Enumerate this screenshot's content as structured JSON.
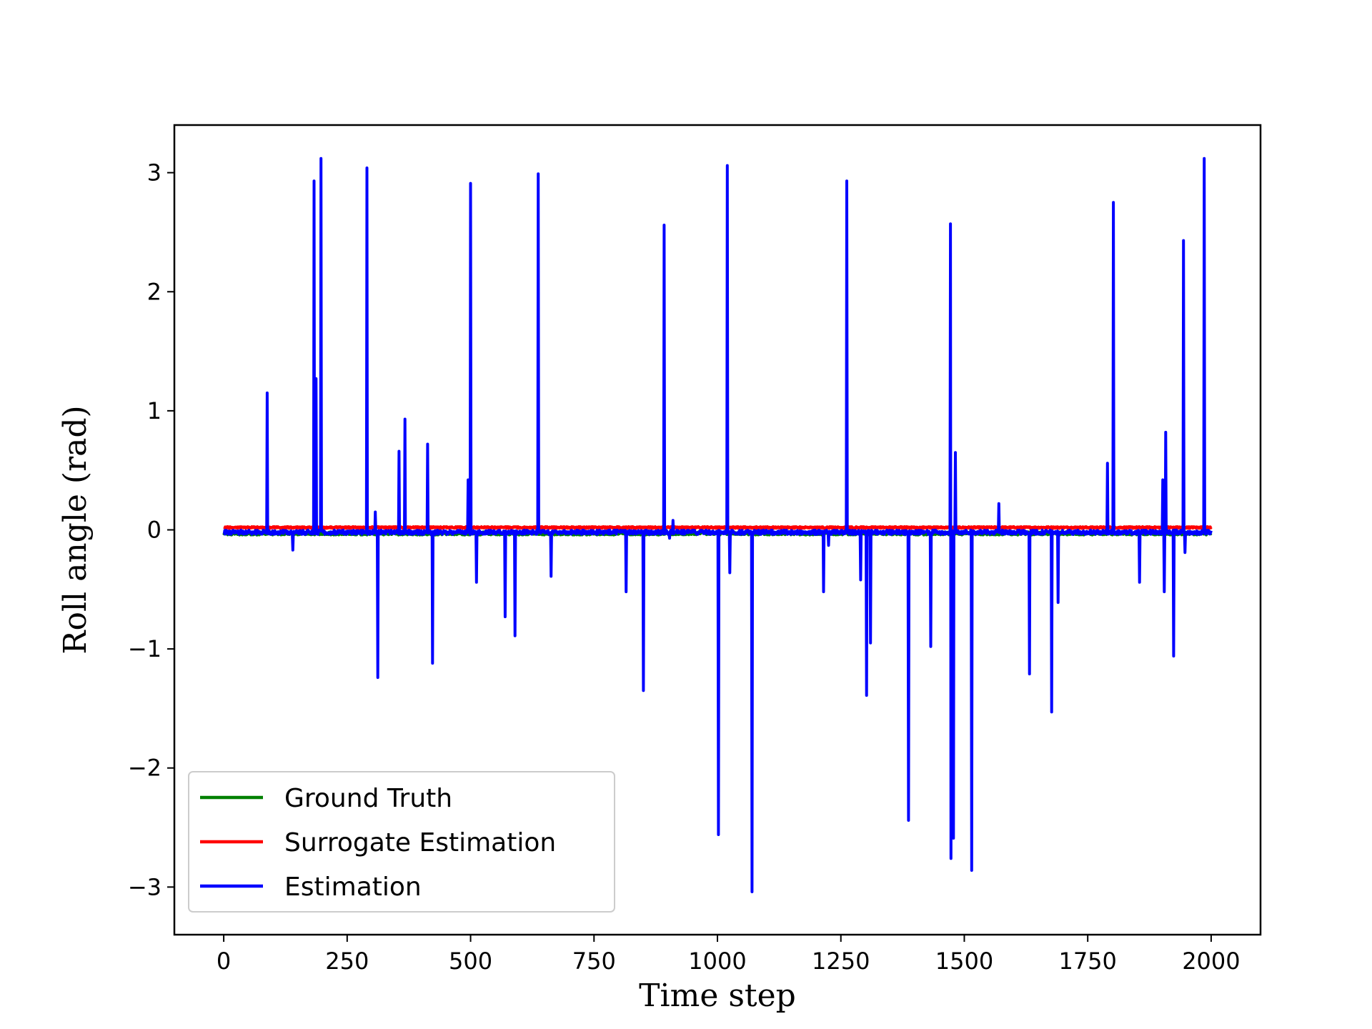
{
  "chart_data": {
    "type": "line",
    "title": "",
    "xlabel": "Time step",
    "ylabel": "Roll angle (rad)",
    "xlim": [
      -100,
      2100
    ],
    "ylim": [
      -3.4,
      3.4
    ],
    "x_ticks": [
      0,
      250,
      500,
      750,
      1000,
      1250,
      1500,
      1750,
      2000
    ],
    "y_ticks": [
      3,
      2,
      1,
      0,
      -1,
      -2,
      -3
    ],
    "y_tick_labels": [
      "3",
      "2",
      "1",
      "0",
      "−1",
      "−2",
      "−3"
    ],
    "grid": false,
    "legend_position": "lower-left",
    "x_range": [
      0,
      2000
    ],
    "series": [
      {
        "name": "Ground Truth",
        "color": "#008000",
        "baseline": -0.03,
        "spikes": []
      },
      {
        "name": "Surrogate Estimation",
        "color": "#ff0000",
        "baseline": 0.02,
        "spikes": []
      },
      {
        "name": "Estimation",
        "color": "#0000ff",
        "baseline": -0.02,
        "spikes": [
          [
            88,
            1.15
          ],
          [
            140,
            -0.17
          ],
          [
            183,
            2.93
          ],
          [
            187,
            1.27
          ],
          [
            197,
            3.12
          ],
          [
            290,
            3.04
          ],
          [
            307,
            0.15
          ],
          [
            312,
            -1.24
          ],
          [
            355,
            0.66
          ],
          [
            367,
            0.93
          ],
          [
            413,
            0.72
          ],
          [
            423,
            -1.12
          ],
          [
            495,
            0.42
          ],
          [
            500,
            2.91
          ],
          [
            512,
            -0.44
          ],
          [
            570,
            -0.73
          ],
          [
            590,
            -0.89
          ],
          [
            637,
            2.99
          ],
          [
            663,
            -0.39
          ],
          [
            815,
            -0.52
          ],
          [
            850,
            -1.35
          ],
          [
            892,
            2.56
          ],
          [
            903,
            -0.07
          ],
          [
            910,
            0.08
          ],
          [
            1002,
            -2.56
          ],
          [
            1020,
            3.06
          ],
          [
            1025,
            -0.36
          ],
          [
            1070,
            -3.04
          ],
          [
            1215,
            -0.52
          ],
          [
            1225,
            -0.13
          ],
          [
            1262,
            2.93
          ],
          [
            1290,
            -0.42
          ],
          [
            1302,
            -1.39
          ],
          [
            1310,
            -0.95
          ],
          [
            1387,
            -2.44
          ],
          [
            1432,
            -0.98
          ],
          [
            1472,
            2.57
          ],
          [
            1473,
            -2.76
          ],
          [
            1478,
            -2.59
          ],
          [
            1482,
            0.65
          ],
          [
            1515,
            -2.86
          ],
          [
            1570,
            0.22
          ],
          [
            1632,
            -1.21
          ],
          [
            1677,
            -1.53
          ],
          [
            1690,
            -0.61
          ],
          [
            1790,
            0.56
          ],
          [
            1802,
            2.75
          ],
          [
            1855,
            -0.44
          ],
          [
            1902,
            0.42
          ],
          [
            1905,
            -0.52
          ],
          [
            1908,
            0.82
          ],
          [
            1924,
            -1.06
          ],
          [
            1944,
            2.43
          ],
          [
            1947,
            -0.19
          ],
          [
            1986,
            3.12
          ]
        ]
      }
    ]
  }
}
